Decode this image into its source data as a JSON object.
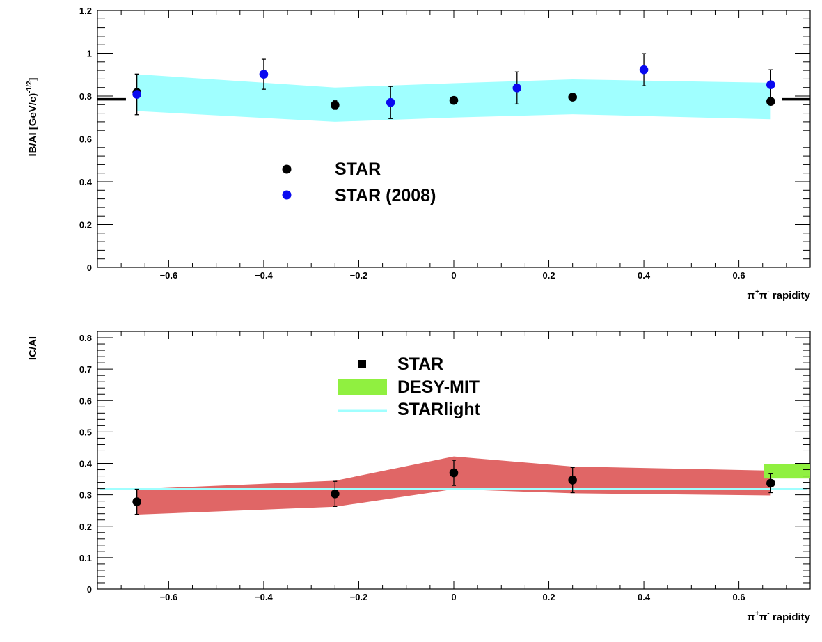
{
  "chart_data": [
    {
      "type": "scatter",
      "xlabel": "π⁺π⁻ rapidity",
      "ylabel": "IB/AI [GeV/c)⁻¹ᐟ²]",
      "xlim": [
        -0.75,
        0.75
      ],
      "ylim": [
        0,
        1.2
      ],
      "xticks": [
        -0.6,
        -0.4,
        -0.2,
        0,
        0.2,
        0.4,
        0.6
      ],
      "yticks": [
        0,
        0.2,
        0.4,
        0.6,
        0.8,
        1,
        1.2
      ],
      "xtick_labels": [
        "−0.6",
        "−0.4",
        "−0.2",
        "0",
        "0.2",
        "0.4",
        "0.6"
      ],
      "ytick_labels": [
        "0",
        "0.2",
        "0.4",
        "0.6",
        "0.8",
        "1",
        "1.2"
      ],
      "legend": [
        {
          "label": "STAR",
          "marker": "circle",
          "color": "#000000"
        },
        {
          "label": "STAR (2008)",
          "marker": "circle",
          "color": "#0a0af0"
        }
      ],
      "series": [
        {
          "name": "STAR",
          "color": "#000000",
          "x": [
            -0.667,
            -0.25,
            0.0,
            0.25,
            0.667
          ],
          "y": [
            0.817,
            0.758,
            0.78,
            0.795,
            0.775
          ],
          "err": [
            0.0,
            0.02,
            0.0,
            0.0,
            0.0
          ]
        },
        {
          "name": "STAR (2008)",
          "color": "#0a0af0",
          "x": [
            -0.667,
            -0.4,
            -0.133,
            0.133,
            0.4,
            0.667
          ],
          "y": [
            0.808,
            0.902,
            0.77,
            0.838,
            0.923,
            0.853
          ],
          "err": [
            0.095,
            0.07,
            0.075,
            0.075,
            0.075,
            0.07
          ]
        }
      ],
      "band": {
        "color": "#a0ffff",
        "x": [
          -0.667,
          -0.25,
          0.0,
          0.25,
          0.667
        ],
        "upper": [
          0.902,
          0.84,
          0.86,
          0.878,
          0.862
        ],
        "lower": [
          0.73,
          0.68,
          0.7,
          0.715,
          0.692
        ]
      },
      "reference_line": {
        "y": 0.785,
        "x_ranges": [
          [
            -0.75,
            -0.69
          ],
          [
            0.69,
            0.75
          ]
        ],
        "color": "#000000"
      }
    },
    {
      "type": "scatter",
      "xlabel": "π⁺π⁻ rapidity",
      "ylabel": "IC/AI",
      "xlim": [
        -0.75,
        0.75
      ],
      "ylim": [
        0,
        0.82
      ],
      "xticks": [
        -0.6,
        -0.4,
        -0.2,
        0,
        0.2,
        0.4,
        0.6
      ],
      "yticks": [
        0,
        0.1,
        0.2,
        0.3,
        0.4,
        0.5,
        0.6,
        0.7,
        0.8
      ],
      "xtick_labels": [
        "−0.6",
        "−0.4",
        "−0.2",
        "0",
        "0.2",
        "0.4",
        "0.6"
      ],
      "ytick_labels": [
        "0",
        "0.1",
        "0.2",
        "0.3",
        "0.4",
        "0.5",
        "0.6",
        "0.7",
        "0.8"
      ],
      "legend": [
        {
          "label": "STAR",
          "marker": "square",
          "color": "#000000"
        },
        {
          "label": "DESY-MIT",
          "marker": "box",
          "color": "#90f040"
        },
        {
          "label": "STARlight",
          "marker": "line",
          "color": "#a0ffff"
        }
      ],
      "series": [
        {
          "name": "STAR",
          "color": "#000000",
          "x": [
            -0.667,
            -0.25,
            0.0,
            0.25,
            0.667
          ],
          "y": [
            0.278,
            0.303,
            0.37,
            0.347,
            0.337
          ],
          "err": [
            0.04,
            0.04,
            0.04,
            0.04,
            0.03
          ]
        }
      ],
      "band": {
        "color": "#e06666",
        "x": [
          -0.667,
          -0.25,
          0.0,
          0.25,
          0.667
        ],
        "upper": [
          0.318,
          0.345,
          0.422,
          0.39,
          0.377
        ],
        "lower": [
          0.237,
          0.262,
          0.318,
          0.305,
          0.298
        ]
      },
      "starlight": {
        "y": 0.318,
        "color": "#a0ffff"
      },
      "desy_mit": {
        "x": [
          0.652,
          0.75
        ],
        "y": [
          0.352,
          0.398
        ],
        "color": "#90f040"
      }
    }
  ]
}
